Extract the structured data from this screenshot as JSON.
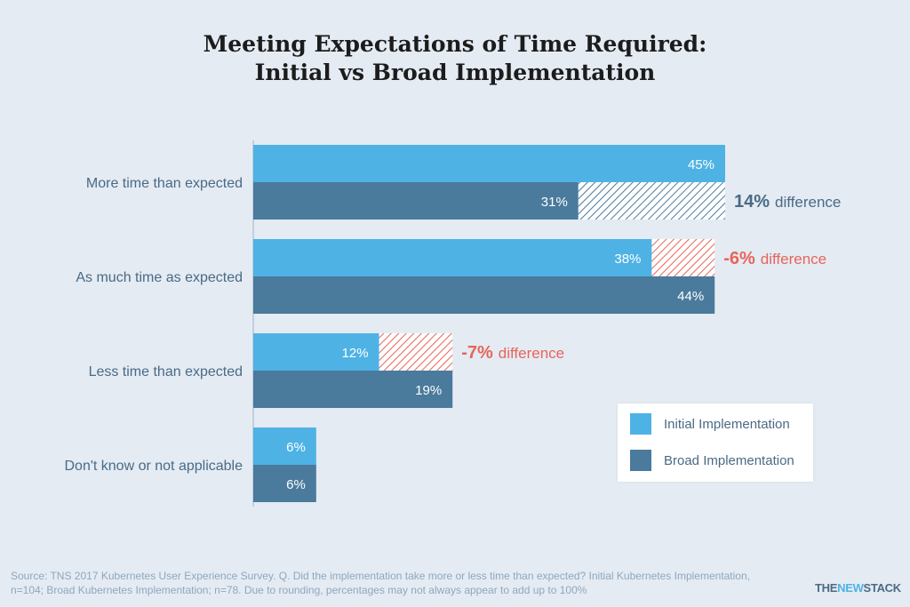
{
  "title": {
    "line1": "Meeting Expectations of Time Required:",
    "line2": "Initial vs Broad Implementation"
  },
  "chart_data": {
    "type": "bar",
    "orientation": "horizontal",
    "categories": [
      "More time than expected",
      "As much time as expected",
      "Less time than expected",
      "Don't know or not applicable"
    ],
    "series": [
      {
        "name": "Initial Implementation",
        "values": [
          45,
          38,
          12,
          6
        ],
        "labels": [
          "45%",
          "38%",
          "12%",
          "6%"
        ]
      },
      {
        "name": "Broad Implementation",
        "values": [
          31,
          44,
          19,
          6
        ],
        "labels": [
          "31%",
          "44%",
          "19%",
          "6%"
        ]
      }
    ],
    "differences": [
      {
        "category_index": 0,
        "value": "14%",
        "text": "difference",
        "color": "#4a6a85"
      },
      {
        "category_index": 1,
        "value": "-6%",
        "text": "difference",
        "color": "#e8655a"
      },
      {
        "category_index": 2,
        "value": "-7%",
        "text": "difference",
        "color": "#e8655a"
      }
    ],
    "xlim": [
      0,
      100
    ],
    "colors": {
      "initial": "#4fb2e5",
      "broad": "#4a7a9c",
      "positive_diff": "#4a6a85",
      "negative_diff": "#e8655a"
    },
    "legend_position": "bottom-right",
    "grid": false
  },
  "legend": {
    "items": [
      {
        "label": "Initial Implementation",
        "color": "#4fb2e5"
      },
      {
        "label": "Broad Implementation",
        "color": "#4a7a9c"
      }
    ]
  },
  "source": "Source: TNS 2017 Kubernetes User Experience Survey. Q. Did the implementation take more or less time than expected? Initial Kubernetes Implementation, n=104; Broad Kubernetes Implementation; n=78. Due to rounding, percentages may not always appear to add up to 100%",
  "logo": {
    "part1": "THE",
    "part2": "NEW",
    "part3": "STACK"
  }
}
